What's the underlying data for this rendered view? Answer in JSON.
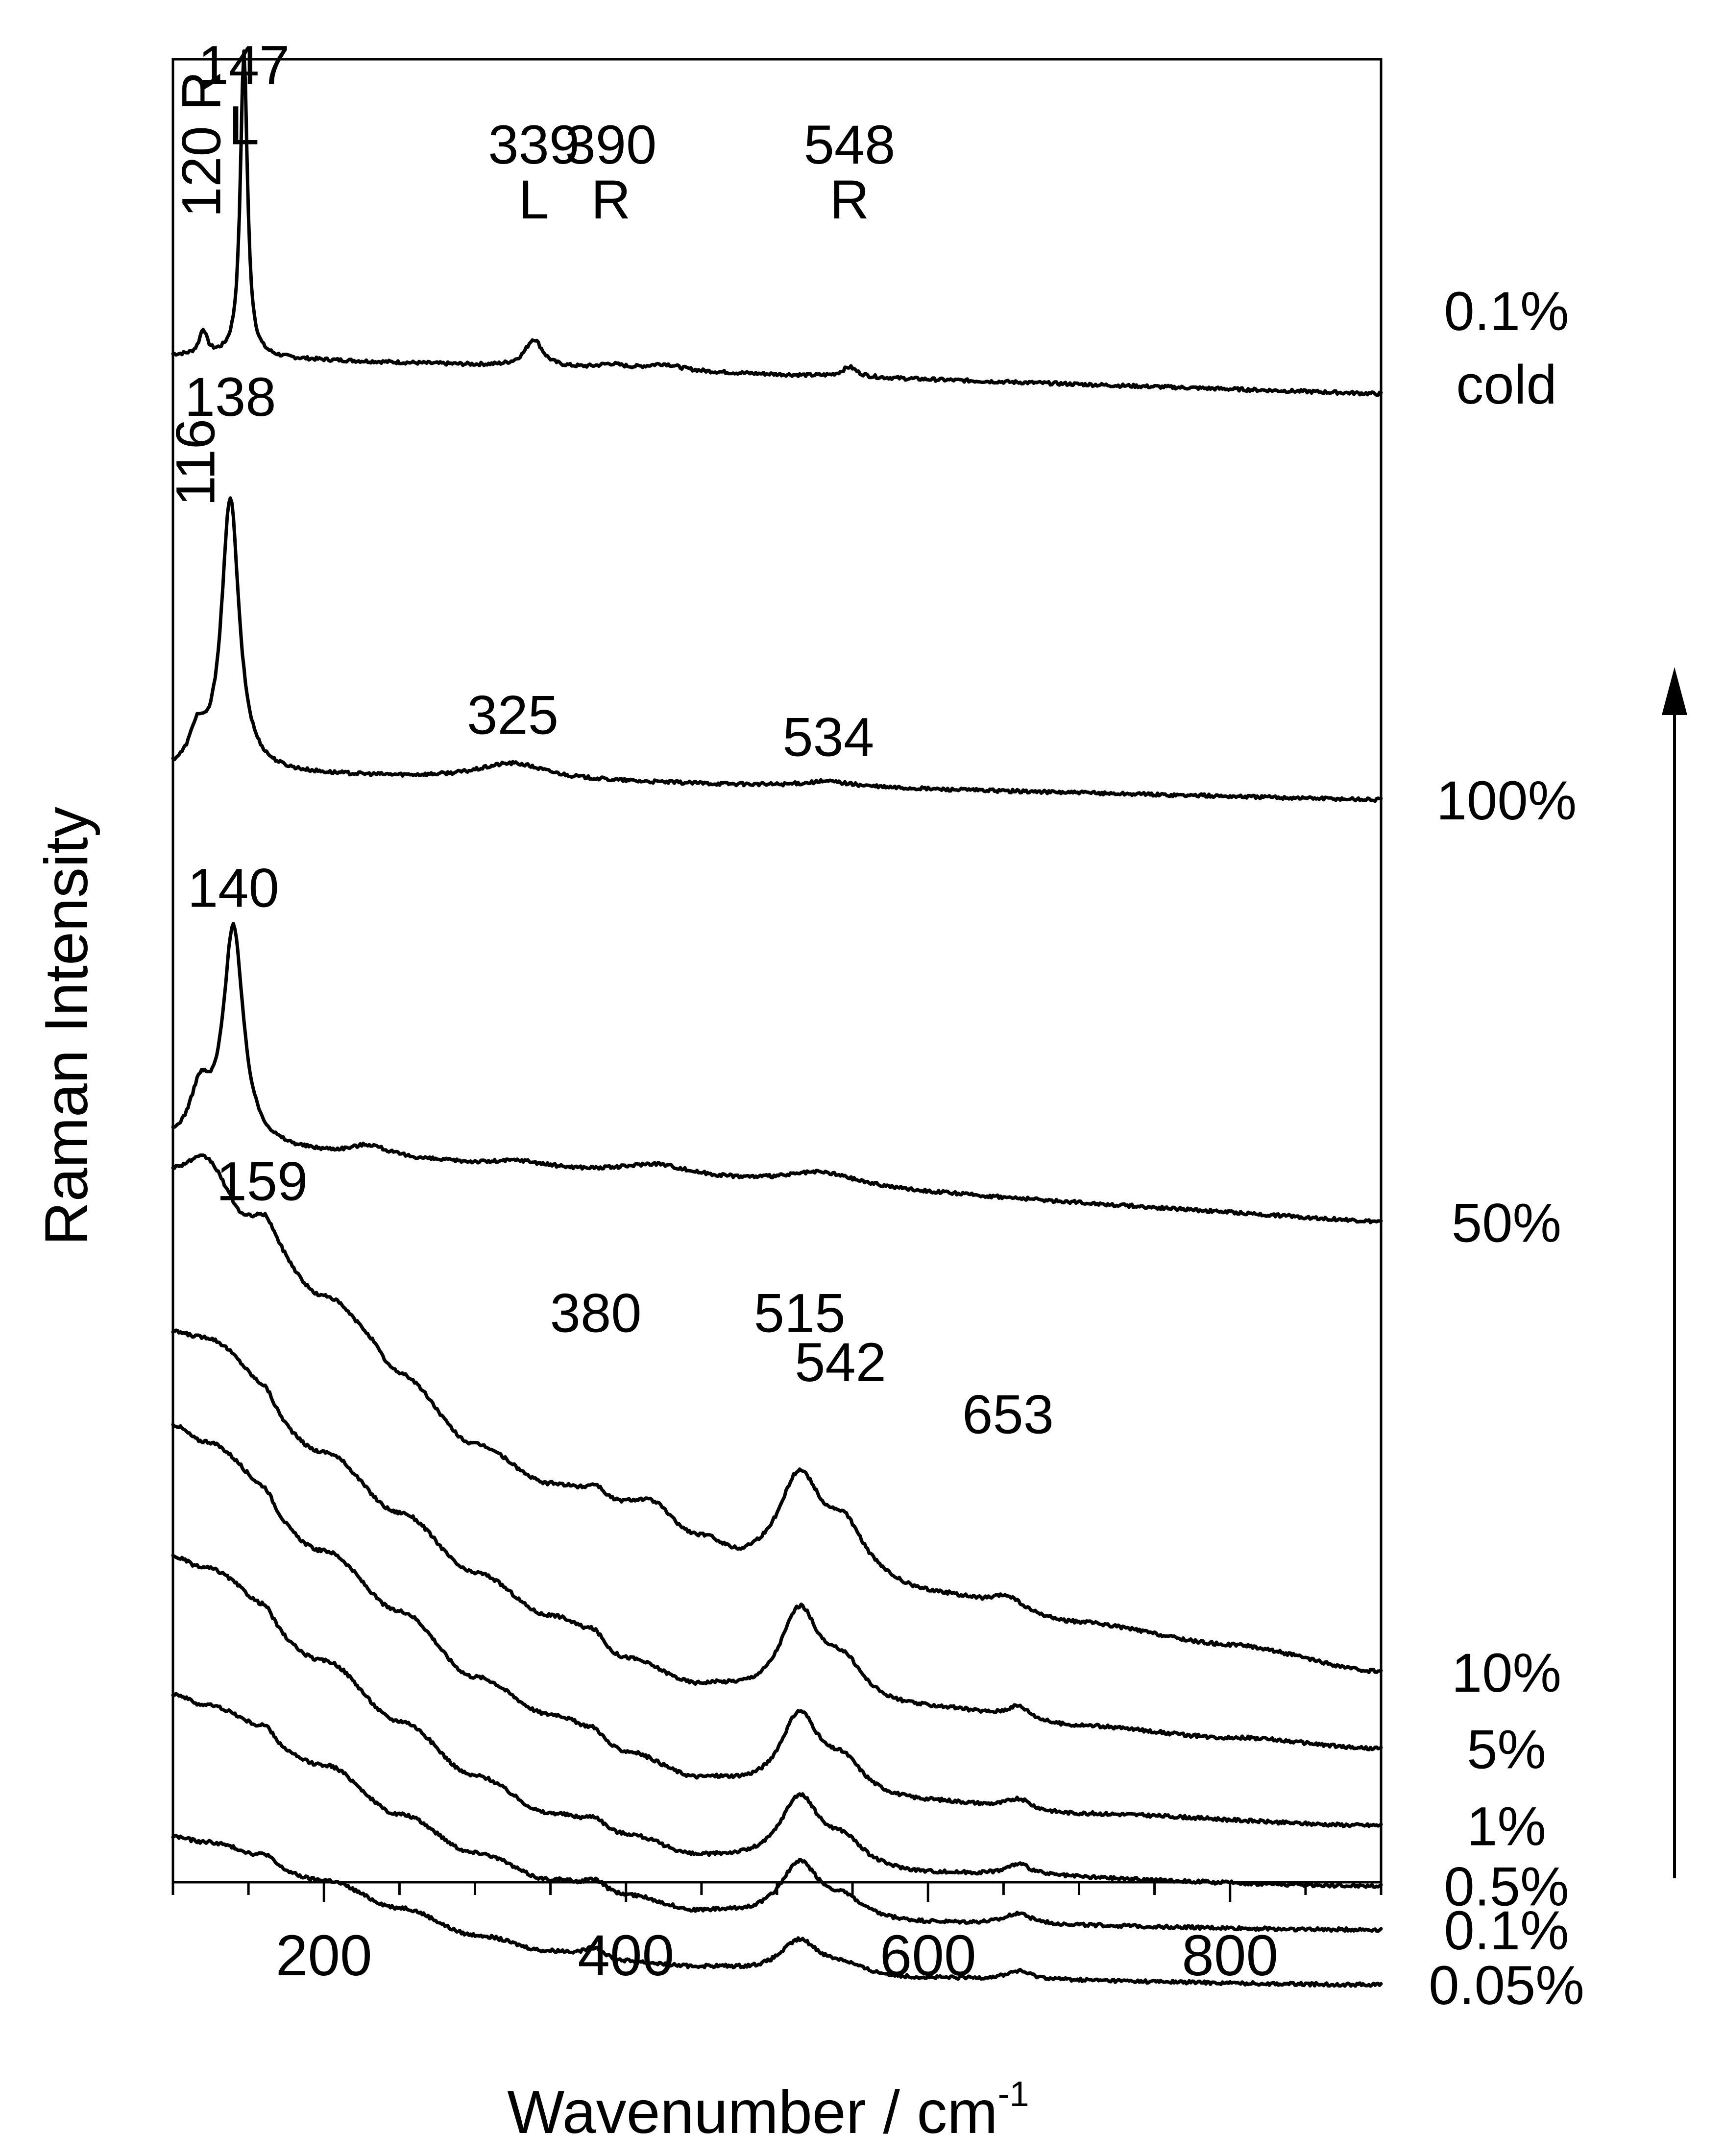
{
  "chart_data": {
    "type": "line",
    "xlabel": "Wavenumber / cm",
    "xlabel_superscript": "-1",
    "ylabel": "Raman Intensity",
    "xlim": [
      100,
      900
    ],
    "x_ticks": [
      200,
      400,
      600,
      800
    ],
    "x_tick_labels": [
      "200",
      "400",
      "600",
      "800"
    ],
    "y_units": "arbitrary (stacked, offset per trace)",
    "y_ticks_shown": false,
    "arrow": "upward, right side",
    "series": [
      {
        "name": "0.1% cold",
        "label_lines": [
          "0.1%",
          "cold"
        ],
        "baseline": 3.5,
        "slope": 0.7,
        "bg": [],
        "peaks": [
          [
            120,
            0.45,
            3
          ],
          [
            147,
            5.6,
            2.8
          ],
          [
            339,
            0.5,
            7
          ],
          [
            390,
            0.08,
            10
          ],
          [
            425,
            0.12,
            14
          ],
          [
            548,
            0.18,
            6
          ]
        ],
        "annotations": [
          {
            "text": "147",
            "x": 147,
            "row": 0,
            "rotate": false
          },
          {
            "text": "L",
            "x": 147,
            "row": 1,
            "rotate": false
          },
          {
            "text": "120 R",
            "x": 120,
            "row": 1,
            "rotate": true
          },
          {
            "text": "339",
            "x": 339,
            "row": 2,
            "rotate": false
          },
          {
            "text": "L",
            "x": 339,
            "row": 3,
            "rotate": false
          },
          {
            "text": "390",
            "x": 390,
            "row": 2,
            "rotate": false
          },
          {
            "text": "R",
            "x": 390,
            "row": 3,
            "rotate": false
          },
          {
            "text": "548",
            "x": 548,
            "row": 2,
            "rotate": false
          },
          {
            "text": "R",
            "x": 548,
            "row": 3,
            "rotate": false
          }
        ]
      },
      {
        "name": "100%",
        "label_lines": [
          "100%"
        ],
        "baseline": 10.9,
        "slope": 0.5,
        "bg": [],
        "peaks": [
          [
            116,
            0.6,
            6
          ],
          [
            138,
            5.0,
            7
          ],
          [
            325,
            0.3,
            28
          ],
          [
            534,
            0.1,
            20
          ]
        ],
        "annotations": [
          {
            "text": "138",
            "x": 138,
            "row": 4,
            "rotate": false
          },
          {
            "text": "116",
            "x": 116,
            "row": 5,
            "rotate": true
          },
          {
            "text": "325",
            "x": 325,
            "row": 6,
            "rotate": false
          },
          {
            "text": "534",
            "x": 534,
            "row": 7,
            "rotate": false
          }
        ]
      },
      {
        "name": "50%",
        "label_lines": [
          "50%"
        ],
        "baseline": 18.6,
        "slope": 1.4,
        "bg": [],
        "peaks": [
          [
            118,
            0.9,
            8
          ],
          [
            140,
            4.0,
            8
          ],
          [
            230,
            0.2,
            15
          ],
          [
            330,
            0.1,
            18
          ],
          [
            420,
            0.2,
            25
          ],
          [
            530,
            0.25,
            30
          ]
        ],
        "annotations": [
          {
            "text": "140",
            "x": 140,
            "row": 8,
            "rotate": false
          }
        ]
      },
      {
        "name": "10%",
        "label_lines": [
          "10%"
        ],
        "baseline": 26.8,
        "slope": 0.7,
        "bg": [
          [
            100,
            8.5
          ],
          [
            120,
            8.7
          ],
          [
            150,
            7.6
          ],
          [
            200,
            6.2
          ],
          [
            250,
            4.8
          ],
          [
            300,
            3.6
          ],
          [
            350,
            2.9
          ],
          [
            400,
            2.5
          ],
          [
            450,
            1.9
          ],
          [
            480,
            1.5
          ],
          [
            500,
            1.4
          ],
          [
            550,
            1.3
          ],
          [
            600,
            1.1
          ],
          [
            700,
            0.7
          ],
          [
            800,
            0.4
          ],
          [
            900,
            0.0
          ]
        ],
        "peaks": [
          [
            162,
            0.25,
            6
          ],
          [
            232,
            0.25,
            12
          ],
          [
            380,
            0.25,
            8
          ],
          [
            420,
            0.3,
            15
          ],
          [
            515,
            1.8,
            18
          ],
          [
            545,
            0.8,
            15
          ],
          [
            653,
            0.25,
            12
          ]
        ],
        "annotations": [
          {
            "text": "159",
            "x": 159,
            "row": 9,
            "rotate": false
          },
          {
            "text": "380",
            "x": 380,
            "row": 10,
            "rotate": false
          },
          {
            "text": "515",
            "x": 515,
            "row": 10,
            "rotate": false
          },
          {
            "text": "542",
            "x": 542,
            "row": 11,
            "rotate": false
          },
          {
            "text": "653",
            "x": 653,
            "row": 12,
            "rotate": false
          }
        ]
      },
      {
        "name": "5%",
        "label_lines": [
          "5%"
        ],
        "baseline": 28.2,
        "slope": 0.0,
        "bg": [
          [
            100,
            7.6
          ],
          [
            120,
            7.5
          ],
          [
            200,
            5.4
          ],
          [
            250,
            4.3
          ],
          [
            300,
            3.2
          ],
          [
            350,
            2.4
          ],
          [
            400,
            1.6
          ],
          [
            450,
            1.1
          ],
          [
            500,
            0.9
          ],
          [
            600,
            0.7
          ],
          [
            700,
            0.4
          ],
          [
            800,
            0.2
          ],
          [
            900,
            0.0
          ]
        ],
        "peaks": [
          [
            162,
            0.2,
            6
          ],
          [
            380,
            0.25,
            8
          ],
          [
            515,
            1.6,
            16
          ],
          [
            545,
            0.6,
            15
          ],
          [
            660,
            0.25,
            10
          ]
        ],
        "annotations": []
      },
      {
        "name": "1%",
        "label_lines": [
          "1%"
        ],
        "baseline": 29.6,
        "slope": 0.0,
        "bg": [
          [
            100,
            7.3
          ],
          [
            120,
            7.0
          ],
          [
            200,
            5.0
          ],
          [
            250,
            3.9
          ],
          [
            300,
            2.7
          ],
          [
            350,
            2.0
          ],
          [
            400,
            1.3
          ],
          [
            450,
            0.8
          ],
          [
            500,
            0.6
          ],
          [
            600,
            0.4
          ],
          [
            700,
            0.2
          ],
          [
            900,
            0.0
          ]
        ],
        "peaks": [
          [
            162,
            0.2,
            6
          ],
          [
            380,
            0.2,
            8
          ],
          [
            515,
            1.4,
            16
          ],
          [
            545,
            0.5,
            15
          ],
          [
            660,
            0.2,
            10
          ]
        ],
        "annotations": []
      },
      {
        "name": "0.5%",
        "label_lines": [
          "0.5%"
        ],
        "baseline": 30.7,
        "slope": 0.0,
        "bg": [
          [
            100,
            6.0
          ],
          [
            120,
            5.8
          ],
          [
            200,
            4.1
          ],
          [
            250,
            3.0
          ],
          [
            300,
            2.0
          ],
          [
            350,
            1.3
          ],
          [
            400,
            0.9
          ],
          [
            450,
            0.5
          ],
          [
            500,
            0.4
          ],
          [
            600,
            0.2
          ],
          [
            900,
            0.0
          ]
        ],
        "peaks": [
          [
            162,
            0.2,
            6
          ],
          [
            380,
            0.2,
            8
          ],
          [
            515,
            1.2,
            16
          ],
          [
            545,
            0.4,
            15
          ],
          [
            660,
            0.2,
            10
          ]
        ],
        "annotations": []
      },
      {
        "name": "0.1%",
        "label_lines": [
          "0.1%"
        ],
        "baseline": 31.5,
        "slope": 0.0,
        "bg": [
          [
            100,
            4.3
          ],
          [
            120,
            4.1
          ],
          [
            200,
            3.0
          ],
          [
            250,
            2.1
          ],
          [
            300,
            1.4
          ],
          [
            350,
            0.9
          ],
          [
            400,
            0.6
          ],
          [
            450,
            0.3
          ],
          [
            500,
            0.2
          ],
          [
            600,
            0.1
          ],
          [
            900,
            0.0
          ]
        ],
        "peaks": [
          [
            162,
            0.2,
            6
          ],
          [
            380,
            0.2,
            8
          ],
          [
            515,
            1.0,
            16
          ],
          [
            545,
            0.3,
            15
          ],
          [
            660,
            0.2,
            10
          ]
        ],
        "annotations": []
      },
      {
        "name": "0.05%",
        "label_lines": [
          "0.05%"
        ],
        "baseline": 32.5,
        "slope": 0.0,
        "bg": [
          [
            100,
            2.7
          ],
          [
            120,
            2.6
          ],
          [
            200,
            1.9
          ],
          [
            250,
            1.4
          ],
          [
            300,
            0.9
          ],
          [
            350,
            0.6
          ],
          [
            400,
            0.4
          ],
          [
            450,
            0.3
          ],
          [
            500,
            0.2
          ],
          [
            600,
            0.1
          ],
          [
            900,
            0.0
          ]
        ],
        "peaks": [
          [
            162,
            0.15,
            6
          ],
          [
            380,
            0.2,
            8
          ],
          [
            515,
            0.6,
            16
          ],
          [
            545,
            0.15,
            15
          ],
          [
            660,
            0.15,
            10
          ]
        ],
        "annotations": []
      }
    ]
  }
}
